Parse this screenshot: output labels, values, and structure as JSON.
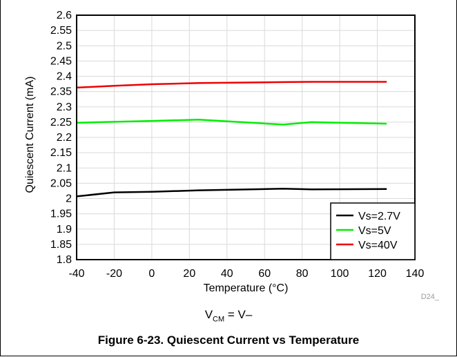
{
  "chart_data": {
    "type": "line",
    "xlabel": "Temperature (°C)",
    "ylabel": "Quiescent Current (mA)",
    "xlim": [
      -40,
      140
    ],
    "ylim": [
      1.8,
      2.6
    ],
    "xticks": [
      -40,
      -20,
      0,
      20,
      40,
      60,
      80,
      100,
      120,
      140
    ],
    "yticks": [
      1.8,
      1.85,
      1.9,
      1.95,
      2,
      2.05,
      2.1,
      2.15,
      2.2,
      2.25,
      2.3,
      2.35,
      2.4,
      2.45,
      2.5,
      2.55,
      2.6
    ],
    "grid": true,
    "legend_position": "bottom-right",
    "series": [
      {
        "name": "Vs=2.7V",
        "color": "#000000",
        "x": [
          -40,
          -20,
          0,
          25,
          70,
          85,
          125
        ],
        "y": [
          2.007,
          2.02,
          2.022,
          2.027,
          2.032,
          2.03,
          2.031
        ]
      },
      {
        "name": "Vs=5V",
        "color": "#00ee00",
        "x": [
          -40,
          -20,
          0,
          25,
          70,
          85,
          125
        ],
        "y": [
          2.248,
          2.251,
          2.254,
          2.258,
          2.242,
          2.25,
          2.245
        ]
      },
      {
        "name": "Vs=40V",
        "color": "#ee0000",
        "x": [
          -40,
          -20,
          0,
          25,
          70,
          85,
          125
        ],
        "y": [
          2.363,
          2.369,
          2.374,
          2.378,
          2.381,
          2.382,
          2.382
        ]
      }
    ],
    "code_label": "D24_"
  },
  "condition": {
    "main": "V",
    "sub": "CM",
    "rest": " = V–"
  },
  "caption": "Figure 6-23. Quiescent Current vs Temperature"
}
